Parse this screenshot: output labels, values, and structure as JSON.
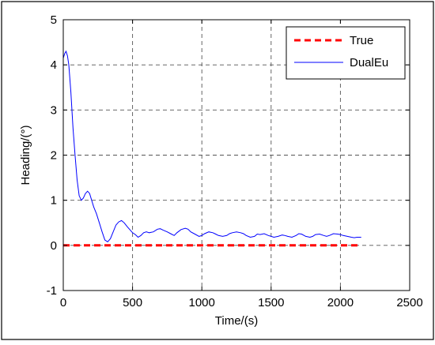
{
  "chart_data": {
    "type": "line",
    "xlabel": "Time/(s)",
    "ylabel": "Heading/(°)",
    "xlim": [
      0,
      2500
    ],
    "ylim": [
      -1,
      5
    ],
    "xticks": [
      0,
      500,
      1000,
      1500,
      2000,
      2500
    ],
    "yticks": [
      -1,
      0,
      1,
      2,
      3,
      4,
      5
    ],
    "grid": true,
    "legend_position": "top-right",
    "series": [
      {
        "name": "True",
        "color": "#ff0000",
        "style": "dashed",
        "x": [
          0,
          2150
        ],
        "y": [
          0,
          0
        ]
      },
      {
        "name": "DualEu",
        "color": "#0000ff",
        "style": "solid",
        "x": [
          0,
          10,
          20,
          30,
          40,
          55,
          70,
          85,
          100,
          115,
          130,
          145,
          160,
          175,
          190,
          205,
          220,
          240,
          260,
          280,
          300,
          320,
          340,
          360,
          380,
          400,
          420,
          440,
          460,
          480,
          500,
          520,
          540,
          560,
          580,
          600,
          620,
          650,
          680,
          700,
          720,
          750,
          780,
          800,
          820,
          850,
          880,
          900,
          920,
          950,
          980,
          1000,
          1020,
          1050,
          1080,
          1100,
          1120,
          1150,
          1180,
          1200,
          1220,
          1250,
          1280,
          1300,
          1320,
          1350,
          1380,
          1400,
          1420,
          1450,
          1480,
          1500,
          1520,
          1550,
          1580,
          1600,
          1620,
          1650,
          1680,
          1700,
          1720,
          1750,
          1780,
          1800,
          1820,
          1850,
          1880,
          1900,
          1920,
          1950,
          1980,
          2000,
          2020,
          2050,
          2080,
          2100,
          2120,
          2150
        ],
        "y": [
          4.15,
          4.25,
          4.3,
          4.2,
          4.0,
          3.4,
          2.6,
          2.0,
          1.45,
          1.1,
          1.0,
          1.05,
          1.15,
          1.2,
          1.15,
          1.0,
          0.85,
          0.7,
          0.5,
          0.3,
          0.12,
          0.08,
          0.15,
          0.3,
          0.45,
          0.52,
          0.55,
          0.5,
          0.42,
          0.35,
          0.28,
          0.24,
          0.18,
          0.22,
          0.28,
          0.3,
          0.28,
          0.3,
          0.36,
          0.37,
          0.34,
          0.3,
          0.25,
          0.22,
          0.28,
          0.35,
          0.38,
          0.36,
          0.3,
          0.25,
          0.2,
          0.22,
          0.26,
          0.3,
          0.28,
          0.25,
          0.22,
          0.2,
          0.22,
          0.26,
          0.28,
          0.3,
          0.28,
          0.26,
          0.22,
          0.18,
          0.2,
          0.25,
          0.24,
          0.26,
          0.22,
          0.2,
          0.18,
          0.2,
          0.23,
          0.22,
          0.2,
          0.18,
          0.22,
          0.26,
          0.25,
          0.2,
          0.18,
          0.2,
          0.24,
          0.25,
          0.22,
          0.2,
          0.22,
          0.26,
          0.25,
          0.24,
          0.22,
          0.2,
          0.18,
          0.17,
          0.18,
          0.18
        ]
      }
    ]
  }
}
